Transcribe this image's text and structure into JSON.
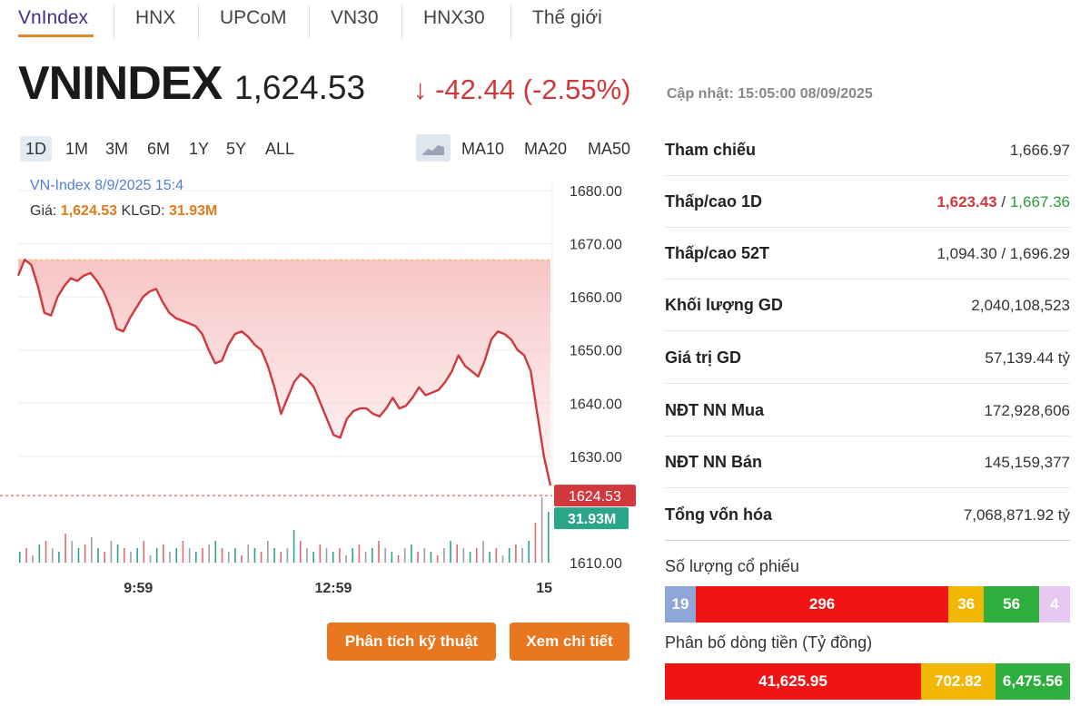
{
  "tabs": [
    {
      "label": "VnIndex",
      "active": true
    },
    {
      "label": "HNX"
    },
    {
      "label": "UPCoM"
    },
    {
      "label": "VN30"
    },
    {
      "label": "HNX30"
    },
    {
      "label": "Thế giới"
    }
  ],
  "header": {
    "title": "VNINDEX",
    "price": "1,624.53",
    "change": "↓ -42.44 (-2.55%)",
    "updated": "Cập nhật: 15:05:00 08/09/2025"
  },
  "ranges": [
    "1D",
    "1M",
    "3M",
    "6M",
    "1Y",
    "5Y",
    "ALL"
  ],
  "ma_buttons": [
    "MA10",
    "MA20",
    "MA50"
  ],
  "chart_legend": {
    "line1": "VN-Index 8/9/2025 15:4",
    "price_label": "Giá:",
    "price_value": "1,624.53",
    "vol_label": "KLGD:",
    "vol_value": "31.93M"
  },
  "chart_data": {
    "type": "line",
    "series": [
      {
        "values": [
          1664,
          1667,
          1666,
          1662,
          1657,
          1656.5,
          1660,
          1662,
          1663.5,
          1663,
          1664,
          1664.5,
          1663,
          1661,
          1658,
          1654,
          1653.5,
          1656,
          1658,
          1660,
          1661,
          1661.5,
          1659,
          1657,
          1656,
          1655.5,
          1655,
          1654.5,
          1653,
          1650,
          1647.5,
          1648,
          1651,
          1653,
          1653.5,
          1652.5,
          1651,
          1650,
          1647,
          1643,
          1638,
          1641,
          1644,
          1645.5,
          1644.5,
          1643,
          1640,
          1637,
          1634,
          1633.5,
          1637,
          1638.5,
          1639,
          1639,
          1638,
          1637.5,
          1639,
          1641,
          1639,
          1639.5,
          1641,
          1643,
          1641.5,
          1642,
          1642.5,
          1644,
          1646,
          1649,
          1647,
          1646,
          1645,
          1648,
          1652,
          1653.5,
          1653,
          1652,
          1650,
          1649,
          1646,
          1638,
          1630,
          1624.5
        ],
        "color": "#d0383e"
      }
    ],
    "volume": [
      1.5,
      2,
      1,
      2.5,
      3,
      2,
      1.5,
      4,
      3,
      2,
      2.5,
      3.5,
      2,
      1.5,
      3,
      2.5,
      2,
      1.5,
      2,
      3,
      1,
      2,
      2.5,
      1.5,
      2,
      3,
      2,
      1.5,
      2,
      2.5,
      3,
      2,
      1.5,
      2,
      1,
      2.5,
      2,
      1.5,
      3,
      2,
      1.5,
      2,
      4.5,
      3,
      2,
      1.5,
      2.5,
      2,
      1.5,
      2,
      1,
      2,
      2.5,
      1.5,
      2,
      3,
      2,
      1.5,
      1,
      2,
      2.5,
      1.5,
      2,
      1.5,
      1,
      2,
      3,
      2.5,
      2,
      1.5,
      2,
      3,
      1.5,
      2,
      1,
      2,
      2.5,
      2,
      3,
      5.5,
      9,
      7
    ],
    "reference": 1666.97,
    "ylim": [
      1610,
      1680
    ],
    "yticks": [
      "1680.00",
      "1670.00",
      "1660.00",
      "1650.00",
      "1640.00",
      "1630.00",
      "1610.00"
    ],
    "ytick_values": [
      1680,
      1670,
      1660,
      1650,
      1640,
      1630,
      1610
    ],
    "xticks": [
      "9:59",
      "12:59",
      "15"
    ],
    "xtick_positions": [
      0.225,
      0.59,
      0.985
    ],
    "last_price_label": "1624.53",
    "last_volume_label": "31.93M"
  },
  "actions": {
    "analysis": "Phân tích kỹ thuật",
    "detail": "Xem chi tiết"
  },
  "stats": [
    {
      "label": "Tham chiếu",
      "value": "1,666.97"
    },
    {
      "label": "Thấp/cao 1D",
      "low": "1,623.43",
      "sep": " / ",
      "high": "1,667.36"
    },
    {
      "label": "Thấp/cao 52T",
      "value": "1,094.30 / 1,696.29"
    },
    {
      "label": "Khối lượng GD",
      "value": "2,040,108,523"
    },
    {
      "label": "Giá trị GD",
      "value": "57,139.44 tỷ"
    },
    {
      "label": "NĐT NN Mua",
      "value": "172,928,606"
    },
    {
      "label": "NĐT NN Bán",
      "value": "145,159,377"
    },
    {
      "label": "Tổng vốn hóa",
      "value": "7,068,871.92 tỷ"
    }
  ],
  "stock_count": {
    "title": "Số lượng cổ phiếu",
    "segments": [
      {
        "label": "19",
        "value": 19,
        "color": "#8fa6d8"
      },
      {
        "label": "296",
        "value": 296,
        "color": "#f01414"
      },
      {
        "label": "36",
        "value": 36,
        "color": "#f2b705"
      },
      {
        "label": "56",
        "value": 56,
        "color": "#2eae3c"
      },
      {
        "label": "4",
        "value": 4,
        "color": "#e7c8f0"
      }
    ]
  },
  "money_flow": {
    "title": "Phân bố dòng tiền (Tỷ đồng)",
    "segments": [
      {
        "label": "41,625.95",
        "value": 41625.95,
        "color": "#f01414"
      },
      {
        "label": "702.82",
        "value": 702.82,
        "color": "#f2b705"
      },
      {
        "label": "6,475.56",
        "value": 6475.56,
        "color": "#2eae3c"
      }
    ]
  }
}
